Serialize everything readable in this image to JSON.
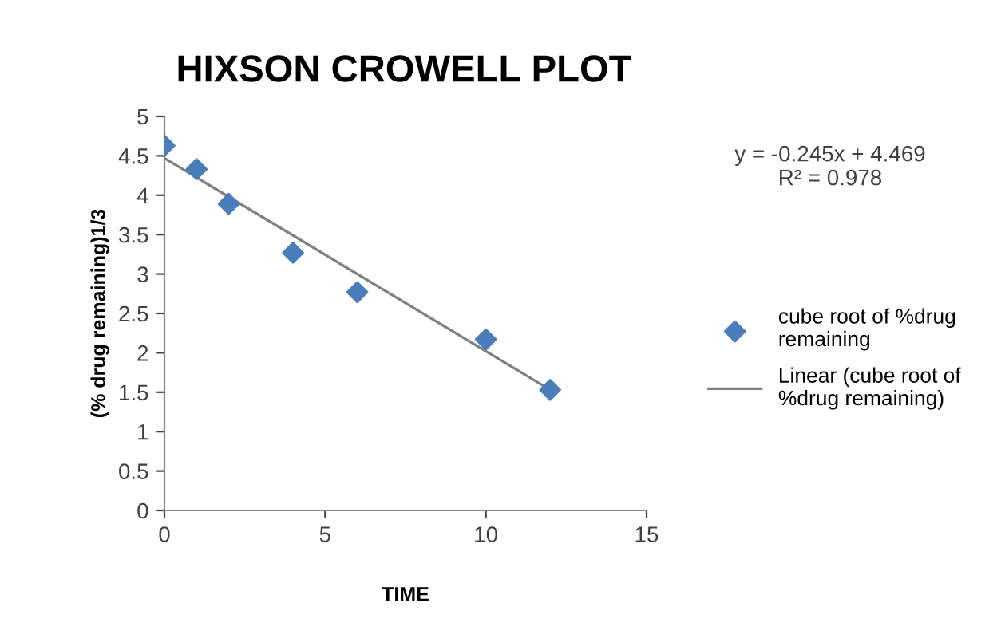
{
  "chart_data": {
    "type": "scatter",
    "title": "HIXSON CROWELL PLOT",
    "xlabel": "TIME",
    "ylabel": "(% drug remaining)1/3",
    "series": [
      {
        "name": "cube root of %drug remaining",
        "color": "#4a7ebb",
        "marker": "diamond",
        "x": [
          0,
          1,
          2,
          4,
          6,
          10,
          12
        ],
        "values": [
          4.63,
          4.33,
          3.89,
          3.27,
          2.77,
          2.17,
          1.53
        ]
      },
      {
        "name": "Linear (cube root of %drug remaining)",
        "type": "line",
        "color": "#7f7f7f",
        "marker": "none",
        "line_style": "solid",
        "x": [
          0,
          12
        ],
        "values": [
          4.47,
          1.53
        ]
      }
    ],
    "xlim": [
      0,
      15
    ],
    "xticks": [
      0,
      5,
      10,
      15
    ],
    "ylim": [
      0,
      5
    ],
    "yticks": [
      0,
      0.5,
      1,
      1.5,
      2,
      2.5,
      3,
      3.5,
      4,
      4.5,
      5
    ],
    "grid": false,
    "legend": "right",
    "annotations": [
      "y = -0.245x + 4.469\nR² = 0.978"
    ]
  }
}
